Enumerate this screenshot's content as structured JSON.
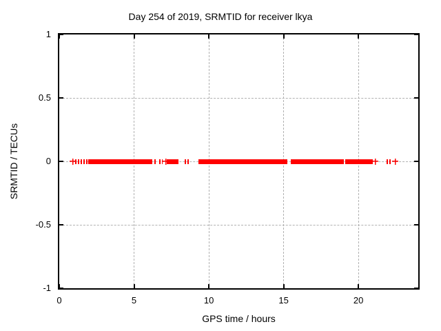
{
  "chart_data": {
    "type": "scatter",
    "title": "Day 254 of 2019, SRMTID for receiver lkya",
    "xlabel": "GPS time / hours",
    "ylabel": "SRMTID / TECUs",
    "xlim": [
      0,
      24
    ],
    "ylim": [
      -1,
      1
    ],
    "xticks": [
      0,
      5,
      10,
      15,
      20
    ],
    "yticks": [
      1,
      0.5,
      0,
      -0.5,
      -1
    ],
    "grid": true,
    "legend": "none",
    "marker": "plus",
    "color": "#ff0000",
    "grid_color": "#b0b0b0",
    "axis_color": "#000000",
    "y_value": 0,
    "band_halfwidth_tecus": 0.02,
    "segments_hours": [
      {
        "start": 0.8,
        "end": 0.88,
        "kind": "point"
      },
      {
        "start": 1.08,
        "end": 1.18,
        "kind": "cluster"
      },
      {
        "start": 1.25,
        "end": 1.55,
        "kind": "cluster"
      },
      {
        "start": 1.63,
        "end": 1.87,
        "kind": "cluster"
      },
      {
        "start": 1.95,
        "end": 6.2,
        "kind": "dense"
      },
      {
        "start": 6.35,
        "end": 6.52,
        "kind": "cluster"
      },
      {
        "start": 6.68,
        "end": 6.9,
        "kind": "cluster"
      },
      {
        "start": 7.0,
        "end": 7.08,
        "kind": "point"
      },
      {
        "start": 7.18,
        "end": 7.95,
        "kind": "dense"
      },
      {
        "start": 8.4,
        "end": 8.75,
        "kind": "cluster"
      },
      {
        "start": 9.3,
        "end": 15.27,
        "kind": "dense"
      },
      {
        "start": 15.48,
        "end": 19.03,
        "kind": "dense"
      },
      {
        "start": 19.13,
        "end": 20.95,
        "kind": "dense"
      },
      {
        "start": 21.0,
        "end": 21.1,
        "kind": "point"
      },
      {
        "start": 21.88,
        "end": 22.25,
        "kind": "cluster"
      },
      {
        "start": 22.35,
        "end": 22.45,
        "kind": "point"
      }
    ]
  }
}
